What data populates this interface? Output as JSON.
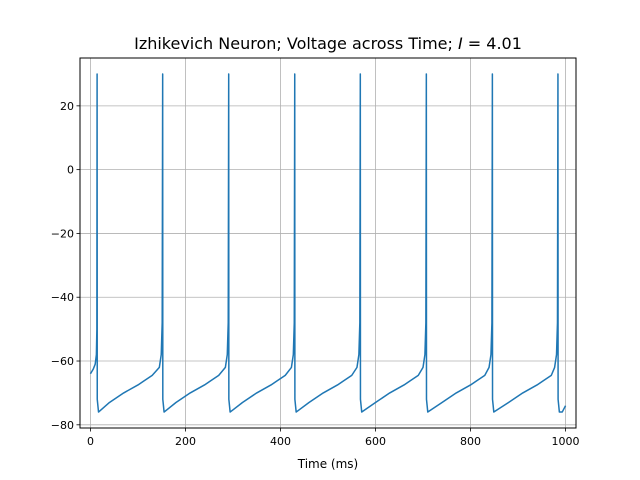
{
  "chart_data": {
    "type": "line",
    "title": "Izhikevich Neuron; Voltage across Time; ",
    "title_math_var": "I",
    "title_math_rest": " = 4.01",
    "xlabel": "Time (ms)",
    "ylabel": "",
    "xlim": [
      -22,
      1022
    ],
    "ylim": [
      -81,
      35
    ],
    "xticks": [
      0,
      200,
      400,
      600,
      800,
      1000
    ],
    "yticks": [
      -80,
      -60,
      -40,
      -20,
      0,
      20
    ],
    "grid": true,
    "series_color": "#1f77b4",
    "series": [
      {
        "name": "",
        "spike_times": [
          14,
          152,
          291,
          430,
          568,
          707,
          846,
          984
        ],
        "spike_peak": 30,
        "reset_value": -76,
        "start": [
          0,
          -64
        ],
        "end": [
          1000,
          -74
        ],
        "points": [
          [
            0,
            -64
          ],
          [
            6,
            -62.5
          ],
          [
            10,
            -61
          ],
          [
            12.5,
            -58
          ],
          [
            13.5,
            -50
          ],
          [
            14,
            30
          ],
          [
            14.3,
            -72
          ],
          [
            17,
            -76
          ],
          [
            40,
            -73
          ],
          [
            70,
            -70
          ],
          [
            100,
            -67.5
          ],
          [
            130,
            -64.5
          ],
          [
            145,
            -62
          ],
          [
            149,
            -58
          ],
          [
            151,
            -48
          ],
          [
            152,
            30
          ],
          [
            152.3,
            -72
          ],
          [
            155,
            -76
          ],
          [
            180,
            -73
          ],
          [
            210,
            -70
          ],
          [
            240,
            -67.5
          ],
          [
            270,
            -64.5
          ],
          [
            284,
            -62
          ],
          [
            288,
            -58
          ],
          [
            290,
            -48
          ],
          [
            291,
            30
          ],
          [
            291.3,
            -72
          ],
          [
            294,
            -76
          ],
          [
            320,
            -73
          ],
          [
            350,
            -70
          ],
          [
            380,
            -67.5
          ],
          [
            410,
            -64.5
          ],
          [
            423,
            -62
          ],
          [
            427,
            -58
          ],
          [
            429,
            -48
          ],
          [
            430,
            30
          ],
          [
            430.3,
            -72
          ],
          [
            433,
            -76
          ],
          [
            460,
            -73
          ],
          [
            490,
            -70
          ],
          [
            520,
            -67.5
          ],
          [
            550,
            -64.5
          ],
          [
            561,
            -62
          ],
          [
            565,
            -58
          ],
          [
            567,
            -48
          ],
          [
            568,
            30
          ],
          [
            568.3,
            -72
          ],
          [
            571,
            -76
          ],
          [
            600,
            -73
          ],
          [
            630,
            -70
          ],
          [
            660,
            -67.5
          ],
          [
            690,
            -64.5
          ],
          [
            700,
            -62
          ],
          [
            704,
            -58
          ],
          [
            706,
            -48
          ],
          [
            707,
            30
          ],
          [
            707.3,
            -72
          ],
          [
            710,
            -76
          ],
          [
            740,
            -73
          ],
          [
            770,
            -70
          ],
          [
            800,
            -67.5
          ],
          [
            830,
            -64.5
          ],
          [
            839,
            -62
          ],
          [
            843,
            -58
          ],
          [
            845,
            -48
          ],
          [
            846,
            30
          ],
          [
            846.3,
            -72
          ],
          [
            849,
            -76
          ],
          [
            880,
            -73
          ],
          [
            910,
            -70
          ],
          [
            940,
            -67.5
          ],
          [
            970,
            -64.5
          ],
          [
            977,
            -62
          ],
          [
            981,
            -58
          ],
          [
            983,
            -48
          ],
          [
            984,
            30
          ],
          [
            984.3,
            -72
          ],
          [
            987,
            -76
          ],
          [
            993,
            -76
          ],
          [
            1000,
            -74
          ]
        ]
      }
    ]
  }
}
